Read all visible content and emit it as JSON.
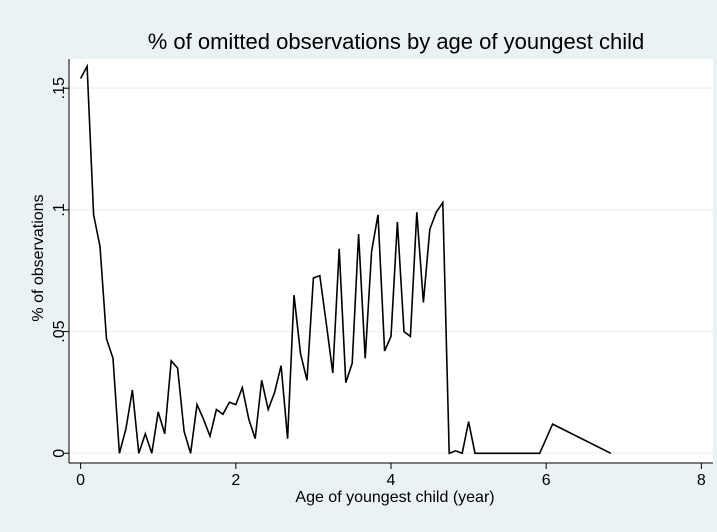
{
  "chart_data": {
    "type": "line",
    "title": "% of omitted observations by age of youngest child",
    "xlabel": "Age of youngest child (year)",
    "ylabel": "% of observations",
    "xlim": [
      -0.15,
      8.15
    ],
    "ylim": [
      -0.004,
      0.162
    ],
    "x_ticks": [
      0,
      2,
      4,
      6,
      8
    ],
    "x_tick_labels": [
      "0",
      "2",
      "4",
      "6",
      "8"
    ],
    "y_ticks": [
      0,
      0.05,
      0.1,
      0.15
    ],
    "y_tick_labels": [
      "0",
      ".05",
      ".1",
      ".15"
    ],
    "grid": true,
    "legend": "none",
    "colors": {
      "outer_background": "#eaf2f3",
      "plot_background": "#ffffff",
      "grid": "#eaf2f3",
      "line": "#000000"
    },
    "series": [
      {
        "x": [
          0.0,
          0.083,
          0.167,
          0.25,
          0.333,
          0.417,
          0.5,
          0.583,
          0.667,
          0.75,
          0.833,
          0.917,
          1.0,
          1.083,
          1.167,
          1.25,
          1.333,
          1.417,
          1.5,
          1.583,
          1.667,
          1.75,
          1.833,
          1.917,
          2.0,
          2.083,
          2.167,
          2.25,
          2.333,
          2.417,
          2.5,
          2.583,
          2.667,
          2.75,
          2.833,
          2.917,
          3.0,
          3.083,
          3.167,
          3.25,
          3.333,
          3.417,
          3.5,
          3.583,
          3.667,
          3.75,
          3.833,
          3.917,
          4.0,
          4.083,
          4.167,
          4.25,
          4.333,
          4.417,
          4.5,
          4.583,
          4.667,
          4.75,
          4.833,
          4.917,
          5.0,
          5.083,
          5.917,
          6.083,
          6.833
        ],
        "values": [
          0.154,
          0.159,
          0.098,
          0.085,
          0.047,
          0.039,
          0.0,
          0.01,
          0.026,
          0.0,
          0.008,
          0.0,
          0.017,
          0.008,
          0.038,
          0.035,
          0.009,
          0.0,
          0.02,
          0.014,
          0.007,
          0.018,
          0.016,
          0.021,
          0.02,
          0.027,
          0.014,
          0.006,
          0.03,
          0.018,
          0.025,
          0.036,
          0.006,
          0.065,
          0.041,
          0.03,
          0.072,
          0.073,
          0.053,
          0.033,
          0.084,
          0.029,
          0.037,
          0.09,
          0.039,
          0.083,
          0.098,
          0.042,
          0.048,
          0.095,
          0.05,
          0.048,
          0.099,
          0.062,
          0.092,
          0.099,
          0.103,
          0.0,
          0.001,
          0.0,
          0.013,
          0.0,
          0.0,
          0.012,
          0.0
        ]
      }
    ]
  }
}
